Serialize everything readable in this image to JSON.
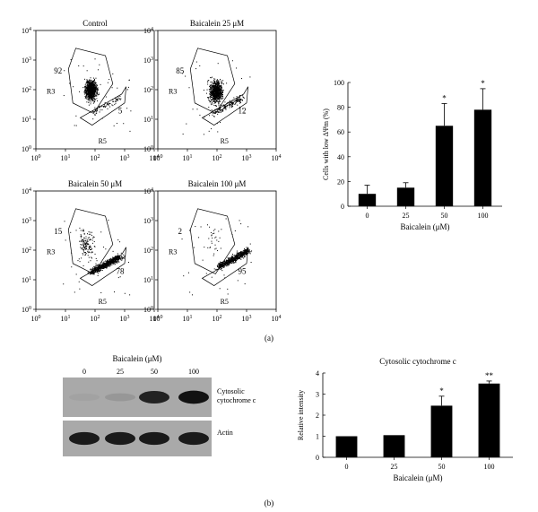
{
  "panel_labels": {
    "a": "(a)",
    "b": "(b)"
  },
  "chart_data": [
    {
      "type": "scatter",
      "title": "Control",
      "axis_ticks": [
        "10^0",
        "10^1",
        "10^2",
        "10^3",
        "10^4"
      ],
      "x_scale": "log",
      "y_scale": "log",
      "xlim": [
        1,
        10000
      ],
      "ylim": [
        1,
        10000
      ],
      "gates": [
        {
          "label": "R3",
          "percent": "92"
        },
        {
          "label": "R5",
          "percent": "5"
        }
      ]
    },
    {
      "type": "scatter",
      "title": "Baicalein 25 μM",
      "axis_ticks": [
        "10^0",
        "10^1",
        "10^2",
        "10^3",
        "10^4"
      ],
      "x_scale": "log",
      "y_scale": "log",
      "xlim": [
        1,
        10000
      ],
      "ylim": [
        1,
        10000
      ],
      "gates": [
        {
          "label": "R3",
          "percent": "85"
        },
        {
          "label": "R5",
          "percent": "12"
        }
      ]
    },
    {
      "type": "scatter",
      "title": "Baicalein 50 μM",
      "axis_ticks": [
        "10^0",
        "10^1",
        "10^2",
        "10^3",
        "10^4"
      ],
      "x_scale": "log",
      "y_scale": "log",
      "xlim": [
        1,
        10000
      ],
      "ylim": [
        1,
        10000
      ],
      "gates": [
        {
          "label": "R3",
          "percent": "15"
        },
        {
          "label": "R5",
          "percent": "78"
        }
      ]
    },
    {
      "type": "scatter",
      "title": "Baicalein 100 μM",
      "axis_ticks": [
        "10^0",
        "10^1",
        "10^2",
        "10^3",
        "10^4"
      ],
      "x_scale": "log",
      "y_scale": "log",
      "xlim": [
        1,
        10000
      ],
      "ylim": [
        1,
        10000
      ],
      "gates": [
        {
          "label": "R3",
          "percent": "2"
        },
        {
          "label": "R5",
          "percent": "95"
        }
      ]
    },
    {
      "type": "bar",
      "categories": [
        "0",
        "25",
        "50",
        "100"
      ],
      "values": [
        10,
        15,
        65,
        78
      ],
      "errors": [
        7,
        4,
        18,
        17
      ],
      "significance": [
        "",
        "",
        "*",
        "*"
      ],
      "xlabel": "Baicalein (μM)",
      "ylabel": "Cells with low ΔΨm (%)",
      "ylim": [
        0,
        100
      ],
      "yticks": [
        "0",
        "20",
        "40",
        "60",
        "80",
        "100"
      ]
    },
    {
      "type": "bar",
      "title": "Cytosolic cytochrome c",
      "categories": [
        "0",
        "25",
        "50",
        "100"
      ],
      "values": [
        1.0,
        1.05,
        2.45,
        3.5
      ],
      "errors": [
        0,
        0,
        0.45,
        0.12
      ],
      "significance": [
        "",
        "",
        "*",
        "**"
      ],
      "xlabel": "Baicalein (μM)",
      "ylabel": "Relative intensity",
      "ylim": [
        0,
        4
      ],
      "yticks": [
        "0",
        "1",
        "2",
        "3",
        "4"
      ]
    }
  ],
  "blot": {
    "title": "Baicalein (μM)",
    "lanes": [
      "0",
      "25",
      "50",
      "100"
    ],
    "rows": [
      {
        "label": "Cytosolic\ncytochrome c",
        "intensities": [
          0.05,
          0.12,
          0.85,
          0.95
        ]
      },
      {
        "label": "Actin",
        "intensities": [
          0.9,
          0.9,
          0.9,
          0.9
        ]
      }
    ]
  }
}
